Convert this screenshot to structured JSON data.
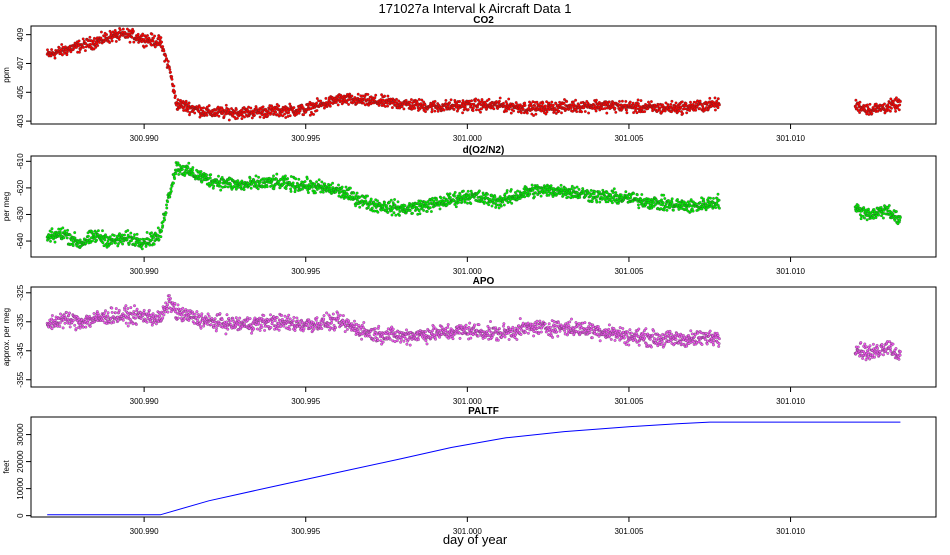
{
  "figure": {
    "title": "171027a   Interval k Aircraft Data 1",
    "xlabel": "day of year"
  },
  "chart_data": [
    {
      "type": "scatter",
      "title": "CO2",
      "ylabel": "ppm",
      "xlim": [
        300.9865,
        301.0145
      ],
      "ylim": [
        402.8,
        409.6
      ],
      "yticks": [
        "409",
        "407",
        "405",
        "403"
      ],
      "ytick_values": [
        409,
        407,
        405,
        403
      ],
      "xticks": [
        "300.990",
        "300.995",
        "301.000",
        "301.005",
        "301.010"
      ],
      "xtick_values": [
        300.99,
        300.995,
        301.0,
        301.005,
        301.01
      ],
      "color": "#ff0000",
      "series": [
        {
          "segments": [
            {
              "x": [
                300.987,
                300.9875,
                300.988,
                300.9885,
                300.989,
                300.9895,
                300.99,
                300.9905,
                300.9908,
                300.991,
                300.992,
                300.993,
                300.994,
                300.995,
                300.996,
                300.997,
                300.998,
                300.999,
                301.0,
                301.001,
                301.002,
                301.003,
                301.004,
                301.005,
                301.006,
                301.007,
                301.0078
              ],
              "y": [
                407.6,
                407.9,
                408.2,
                408.5,
                408.9,
                409.0,
                408.7,
                408.5,
                406.5,
                404.2,
                403.6,
                403.6,
                403.7,
                403.8,
                404.5,
                404.4,
                404.2,
                404.0,
                404.1,
                404.1,
                403.9,
                404.0,
                404.1,
                404.0,
                403.9,
                404.0,
                404.2
              ]
            },
            {
              "x": [
                301.012,
                301.0125,
                301.013,
                301.0134
              ],
              "y": [
                404.1,
                403.8,
                404.0,
                404.2
              ]
            }
          ]
        }
      ]
    },
    {
      "type": "scatter",
      "title": "d(O2/N2)",
      "ylabel": "per meg",
      "xlim": [
        300.9865,
        301.0145
      ],
      "ylim": [
        -646,
        -608
      ],
      "yticks": [
        "-610",
        "-620",
        "-630",
        "-640"
      ],
      "ytick_values": [
        -610,
        -620,
        -630,
        -640
      ],
      "xticks": [
        "300.990",
        "300.995",
        "301.000",
        "301.005",
        "301.010"
      ],
      "xtick_values": [
        300.99,
        300.995,
        301.0,
        301.005,
        301.01
      ],
      "color": "#00ee00",
      "series": [
        {
          "segments": [
            {
              "x": [
                300.987,
                300.9875,
                300.988,
                300.9885,
                300.989,
                300.9895,
                300.99,
                300.9905,
                300.9907,
                300.991,
                300.992,
                300.993,
                300.994,
                300.995,
                300.996,
                300.997,
                300.998,
                300.999,
                301.0,
                301.001,
                301.002,
                301.003,
                301.004,
                301.005,
                301.006,
                301.007,
                301.0078
              ],
              "y": [
                -639,
                -637,
                -641,
                -638,
                -640,
                -639,
                -640,
                -638,
                -626,
                -612,
                -617,
                -619,
                -618,
                -619,
                -621,
                -626,
                -628,
                -626,
                -623,
                -625,
                -621,
                -621,
                -623,
                -624,
                -626,
                -627,
                -625
              ]
            },
            {
              "x": [
                301.012,
                301.0125,
                301.013,
                301.0134
              ],
              "y": [
                -628,
                -630,
                -628,
                -633
              ]
            }
          ]
        }
      ]
    },
    {
      "type": "scatter",
      "title": "APO",
      "ylabel": "approx. per meg",
      "xlim": [
        300.9865,
        301.0145
      ],
      "ylim": [
        -357.5,
        -323
      ],
      "yticks": [
        "-325",
        "-335",
        "-345",
        "-355"
      ],
      "ytick_values": [
        -325,
        -335,
        -345,
        -355
      ],
      "xticks": [
        "300.990",
        "300.995",
        "301.000",
        "301.005",
        "301.010"
      ],
      "xtick_values": [
        300.99,
        300.995,
        301.0,
        301.005,
        301.01
      ],
      "color": "#ee55ee",
      "series": [
        {
          "segments": [
            {
              "x": [
                300.987,
                300.9875,
                300.988,
                300.9885,
                300.989,
                300.9895,
                300.99,
                300.9905,
                300.9908,
                300.991,
                300.992,
                300.993,
                300.994,
                300.995,
                300.996,
                300.997,
                300.998,
                300.999,
                301.0,
                301.001,
                301.002,
                301.003,
                301.004,
                301.005,
                301.006,
                301.007,
                301.0078
              ],
              "y": [
                -336,
                -334,
                -335,
                -334,
                -333,
                -333,
                -333,
                -334,
                -328,
                -332,
                -335,
                -336,
                -335,
                -336,
                -335,
                -339,
                -340,
                -339,
                -338,
                -339,
                -337,
                -337,
                -338,
                -340,
                -341,
                -341,
                -340
              ]
            },
            {
              "x": [
                301.012,
                301.0125,
                301.013,
                301.0134
              ],
              "y": [
                -344,
                -346,
                -343,
                -347
              ]
            }
          ]
        }
      ]
    },
    {
      "type": "line",
      "title": "PALTF",
      "ylabel": "feet",
      "xlim": [
        300.9865,
        301.0145
      ],
      "ylim": [
        -500,
        36500
      ],
      "yticks": [
        "0",
        "10000",
        "20000",
        "30000"
      ],
      "ytick_values": [
        0,
        10000,
        20000,
        30000
      ],
      "xticks": [
        "300.990",
        "300.995",
        "301.000",
        "301.005",
        "301.010"
      ],
      "xtick_values": [
        300.99,
        300.995,
        301.0,
        301.005,
        301.01
      ],
      "color": "#0000ff",
      "series": [
        {
          "x": [
            300.987,
            300.9905,
            300.992,
            300.994,
            300.996,
            300.998,
            300.9995,
            301.0012,
            301.003,
            301.005,
            301.0065,
            301.0075,
            301.009,
            301.011,
            301.0134
          ],
          "y": [
            300,
            300,
            5500,
            10800,
            16000,
            21200,
            25200,
            28800,
            31100,
            32900,
            34000,
            34600,
            34600,
            34600,
            34600
          ]
        }
      ]
    }
  ]
}
